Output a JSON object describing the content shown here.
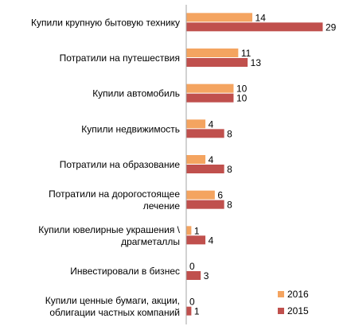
{
  "chart_data": {
    "type": "bar",
    "orientation": "horizontal",
    "categories": [
      [
        "Купили крупную бытовую технику"
      ],
      [
        "Потратили на путешествия"
      ],
      [
        "Купили автомобиль"
      ],
      [
        "Купили недвижимость"
      ],
      [
        "Потратили на образование"
      ],
      [
        "Потратили на дорогостоящее",
        "лечение"
      ],
      [
        "Купили ювелирные украшения \\",
        "драгметаллы"
      ],
      [
        "Инвестировали в бизнес"
      ],
      [
        "Купили ценные бумаги, акции,",
        "облигации частных компаний"
      ]
    ],
    "series": [
      {
        "name": "2016",
        "color": "#f4a460",
        "values": [
          14,
          11,
          10,
          4,
          4,
          6,
          1,
          0,
          0
        ]
      },
      {
        "name": "2015",
        "color": "#c0504d",
        "values": [
          29,
          13,
          10,
          8,
          8,
          8,
          4,
          3,
          1
        ]
      }
    ],
    "xlim": [
      0,
      29
    ],
    "legend_position": "bottom-right",
    "axis_color": "#a6a6a6"
  }
}
